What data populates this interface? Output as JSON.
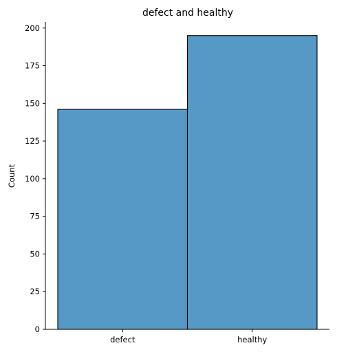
{
  "chart_data": {
    "type": "bar",
    "title": "defect and healthy",
    "xlabel": "",
    "ylabel": "Count",
    "categories": [
      "defect",
      "healthy"
    ],
    "values": [
      146,
      195
    ],
    "ylim": [
      0,
      204
    ],
    "yticks": [
      0,
      25,
      50,
      75,
      100,
      125,
      150,
      175,
      200
    ],
    "grid": false,
    "bar_color": "#5799c6",
    "edge_color": "#000000"
  }
}
